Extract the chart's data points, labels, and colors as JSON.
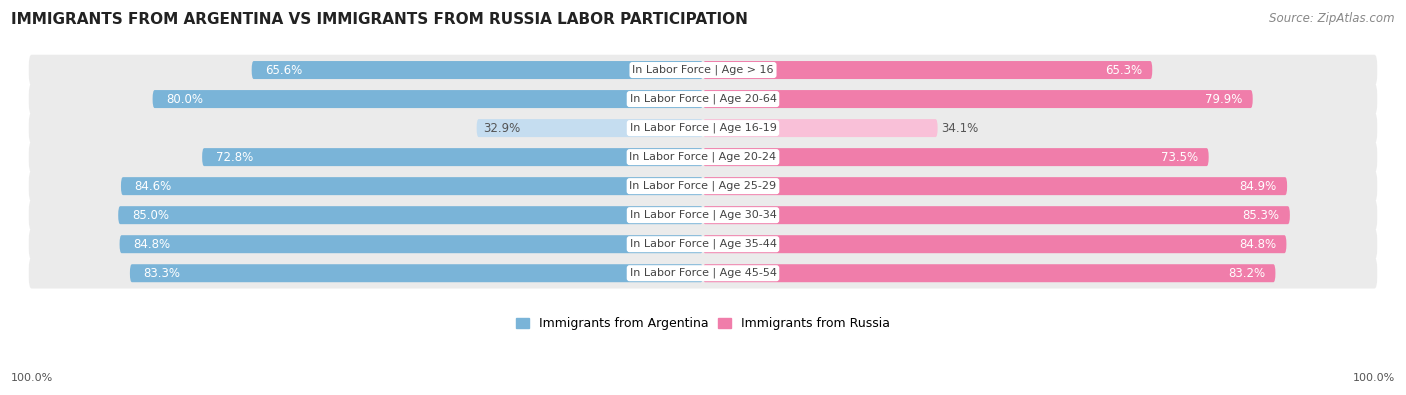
{
  "title": "IMMIGRANTS FROM ARGENTINA VS IMMIGRANTS FROM RUSSIA LABOR PARTICIPATION",
  "source": "Source: ZipAtlas.com",
  "categories": [
    "In Labor Force | Age > 16",
    "In Labor Force | Age 20-64",
    "In Labor Force | Age 16-19",
    "In Labor Force | Age 20-24",
    "In Labor Force | Age 25-29",
    "In Labor Force | Age 30-34",
    "In Labor Force | Age 35-44",
    "In Labor Force | Age 45-54"
  ],
  "argentina_values": [
    65.6,
    80.0,
    32.9,
    72.8,
    84.6,
    85.0,
    84.8,
    83.3
  ],
  "russia_values": [
    65.3,
    79.9,
    34.1,
    73.5,
    84.9,
    85.3,
    84.8,
    83.2
  ],
  "argentina_color": "#7ab4d8",
  "russia_color": "#f07daa",
  "argentina_light_color": "#c5ddf0",
  "russia_light_color": "#f9c0d8",
  "row_bg_color": "#ebebeb",
  "argentina_label": "Immigrants from Argentina",
  "russia_label": "Immigrants from Russia",
  "max_value": 100.0,
  "light_threshold": 50,
  "title_fontsize": 11,
  "source_fontsize": 8.5,
  "bar_label_fontsize": 8.5,
  "cat_label_fontsize": 8,
  "legend_fontsize": 9
}
